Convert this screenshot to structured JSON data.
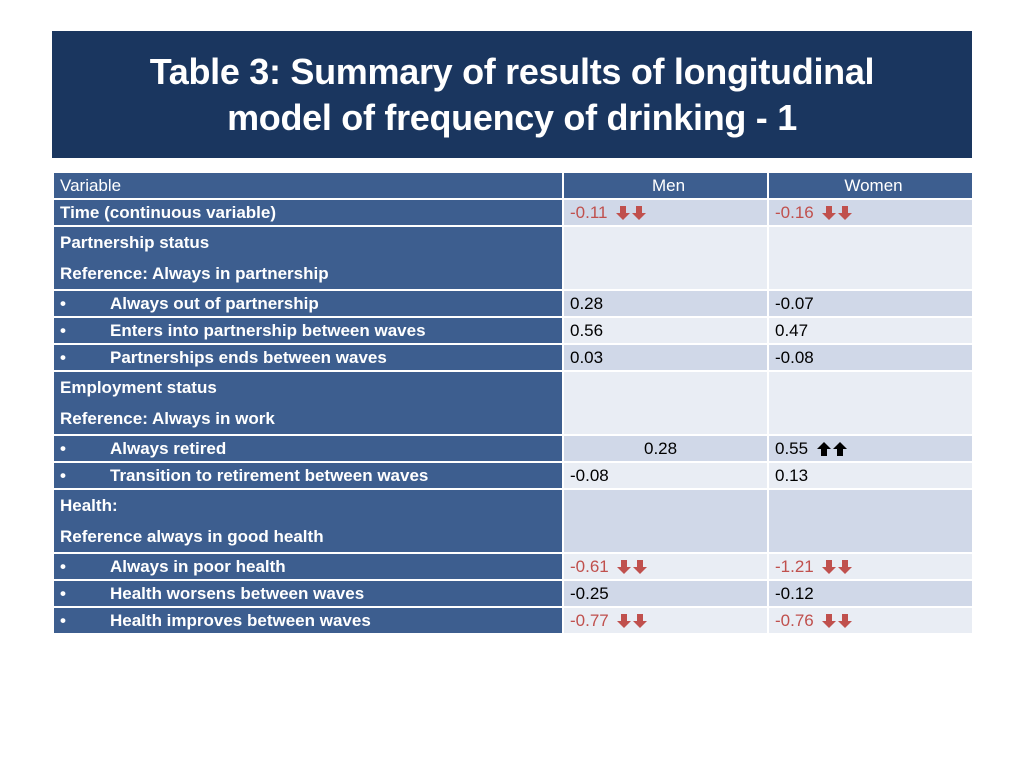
{
  "title": {
    "line1": "Table 3: Summary of results of longitudinal",
    "line2": "model of frequency of drinking - 1"
  },
  "colors": {
    "title_bg": "#1a365f",
    "header_bg": "#3d5e8f",
    "row_light": "#e9edf4",
    "row_mid": "#d0d8e8",
    "significant_negative": "#c0504d"
  },
  "table": {
    "headers": [
      "Variable",
      "Men",
      "Women"
    ],
    "rows": [
      {
        "label": "Time (continuous variable)",
        "men": "-0.11",
        "women": "-0.16",
        "men_icon": "double-down-arrow-icon",
        "women_icon": "double-down-arrow-icon"
      },
      {
        "label1": "Partnership status",
        "label2": "Reference: Always in partnership",
        "men": "",
        "women": ""
      },
      {
        "bullet": "•",
        "label": "Always out of partnership",
        "men": "0.28",
        "women": "-0.07"
      },
      {
        "bullet": "•",
        "label": "Enters into partnership between waves",
        "men": "0.56",
        "women": "0.47"
      },
      {
        "bullet": "•",
        "label": "Partnerships ends between waves",
        "men": "0.03",
        "women": "-0.08"
      },
      {
        "label1": "Employment status",
        "label2": "Reference: Always in work",
        "men": "",
        "women": ""
      },
      {
        "bullet": "•",
        "label": "Always retired",
        "men": "0.28",
        "women": "0.55",
        "women_icon": "double-up-arrow-icon"
      },
      {
        "bullet": "•",
        "label": "Transition to retirement between waves",
        "men": "-0.08",
        "women": "0.13"
      },
      {
        "label1": "Health:",
        "label2": "Reference always in good health",
        "men": "",
        "women": ""
      },
      {
        "bullet": "•",
        "label": "Always in poor health",
        "men": "-0.61",
        "women": "-1.21",
        "men_icon": "double-down-arrow-icon",
        "women_icon": "double-down-arrow-icon"
      },
      {
        "bullet": "•",
        "label": "Health worsens between waves",
        "men": "-0.25",
        "women": "-0.12"
      },
      {
        "bullet": "•",
        "label": "Health improves between waves",
        "men": "-0.77",
        "women": "-0.76",
        "men_icon": "double-down-arrow-icon",
        "women_icon": "double-down-arrow-icon"
      }
    ]
  }
}
